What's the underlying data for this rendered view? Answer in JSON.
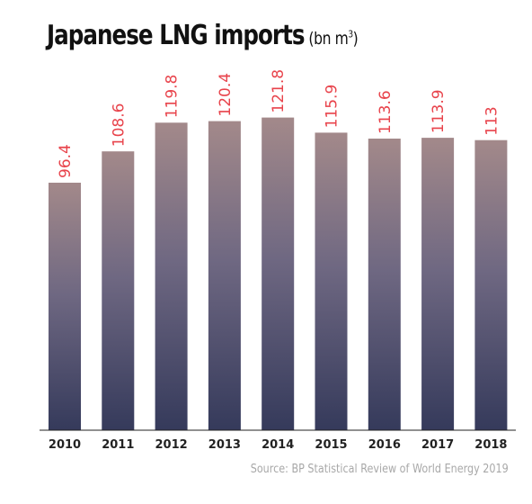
{
  "title": "Japanese LNG imports",
  "unit": "(bn m",
  "unit_sup": "3",
  "unit_close": ")",
  "source": "Source: BP Statistical Review of World Energy 2019",
  "colors": {
    "bar_top": "#a3898a",
    "bar_bottom": "#353a5b",
    "label": "#e8434b",
    "axis": "#222222"
  },
  "chart_data": {
    "type": "bar",
    "title": "Japanese LNG imports",
    "ylabel": "",
    "xlabel": "",
    "categories": [
      "2010",
      "2011",
      "2012",
      "2013",
      "2014",
      "2015",
      "2016",
      "2017",
      "2018"
    ],
    "values": [
      96.4,
      108.6,
      119.8,
      120.4,
      121.8,
      115.9,
      113.6,
      113.9,
      113
    ],
    "value_labels": [
      "96.4",
      "108.6",
      "119.8",
      "120.4",
      "121.8",
      "115.9",
      "113.6",
      "113.9",
      "113"
    ],
    "ylim": [
      0,
      122
    ],
    "grid": false,
    "legend": "none"
  }
}
